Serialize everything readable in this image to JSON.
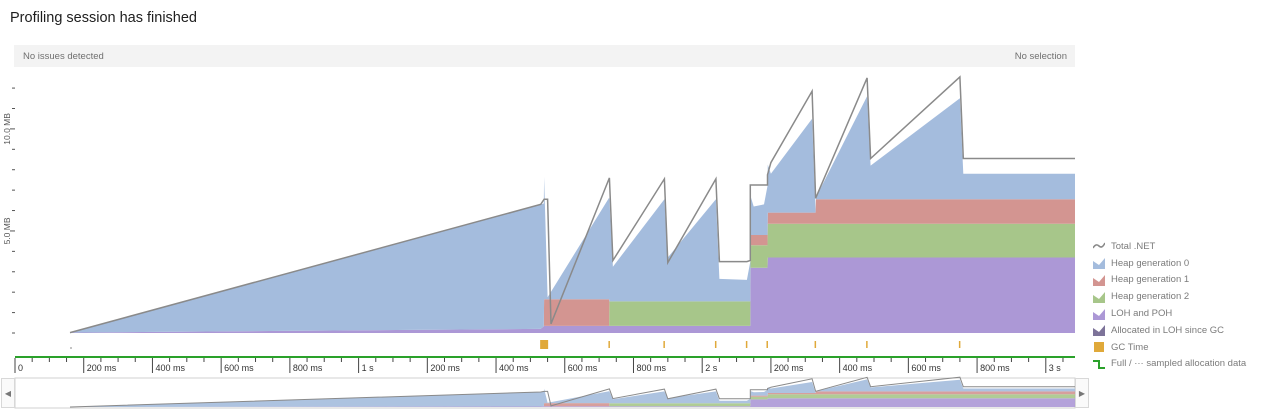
{
  "title": "Profiling session has finished",
  "status": {
    "left": "No issues detected",
    "right": "No selection"
  },
  "legend": [
    {
      "label": "Total .NET",
      "icon": "line-icon",
      "color": "#8a8a8a"
    },
    {
      "label": "Heap generation 0",
      "icon": "area-icon",
      "color": "#a4bcdd"
    },
    {
      "label": "Heap generation 1",
      "icon": "area-icon",
      "color": "#d39591"
    },
    {
      "label": "Heap generation 2",
      "icon": "area-icon",
      "color": "#a7c68a"
    },
    {
      "label": "LOH and POH",
      "icon": "area-icon",
      "color": "#ac98d6"
    },
    {
      "label": "Allocated in LOH since GC",
      "icon": "area-icon",
      "color": "#7d7399"
    },
    {
      "label": "GC Time",
      "icon": "square-icon",
      "color": "#e0a93a"
    },
    {
      "label": "Full / ··· sampled allocation data",
      "icon": "step-line-icon",
      "color": "#2aa12a"
    }
  ],
  "chart_data": {
    "type": "area",
    "stacked": true,
    "ylabel_ticks": [
      "5.0 MB",
      "10.0 MB"
    ],
    "y_ticks": [
      5,
      10
    ],
    "ylim": [
      0,
      12.2
    ],
    "x_unit": "seconds",
    "xlim": [
      0,
      3.085
    ],
    "x_tick_labels": [
      {
        "x": 0,
        "label": "0"
      },
      {
        "x": 0.2,
        "label": "200 ms"
      },
      {
        "x": 0.4,
        "label": "400 ms"
      },
      {
        "x": 0.6,
        "label": "600 ms"
      },
      {
        "x": 0.8,
        "label": "800 ms"
      },
      {
        "x": 1.0,
        "label": "1 s"
      },
      {
        "x": 1.2,
        "label": "200 ms"
      },
      {
        "x": 1.4,
        "label": "400 ms"
      },
      {
        "x": 1.6,
        "label": "600 ms"
      },
      {
        "x": 1.8,
        "label": "800 ms"
      },
      {
        "x": 2.0,
        "label": "2 s"
      },
      {
        "x": 2.2,
        "label": "200 ms"
      },
      {
        "x": 2.4,
        "label": "400 ms"
      },
      {
        "x": 2.6,
        "label": "600 ms"
      },
      {
        "x": 2.8,
        "label": "800 ms"
      },
      {
        "x": 3.0,
        "label": "3 s"
      }
    ],
    "series": [
      {
        "name": "LOH and POH",
        "color": "#ac98d6",
        "points": [
          [
            0.16,
            0.02
          ],
          [
            1.53,
            0.2
          ],
          [
            1.54,
            0.35
          ],
          [
            2.14,
            0.35
          ],
          [
            2.141,
            3.2
          ],
          [
            2.19,
            3.2
          ],
          [
            2.191,
            3.7
          ],
          [
            3.085,
            3.7
          ]
        ]
      },
      {
        "name": "Heap generation 2",
        "color": "#a7c68a",
        "points": [
          [
            0.16,
            0.0
          ],
          [
            1.729,
            0.0
          ],
          [
            1.73,
            1.2
          ],
          [
            2.14,
            1.2
          ],
          [
            2.141,
            1.1
          ],
          [
            2.19,
            1.1
          ],
          [
            2.191,
            1.65
          ],
          [
            3.085,
            1.65
          ]
        ]
      },
      {
        "name": "Heap generation 1",
        "color": "#d39591",
        "points": [
          [
            0.16,
            0.0
          ],
          [
            1.539,
            0.0
          ],
          [
            1.54,
            1.3
          ],
          [
            1.729,
            1.3
          ],
          [
            1.73,
            0.0
          ],
          [
            2.14,
            0.0
          ],
          [
            2.141,
            0.5
          ],
          [
            2.19,
            0.5
          ],
          [
            2.191,
            0.55
          ],
          [
            2.33,
            0.55
          ],
          [
            2.331,
            1.2
          ],
          [
            3.085,
            1.2
          ]
        ]
      },
      {
        "name": "Heap generation 0",
        "color": "#a4bcdd",
        "points": [
          [
            0.16,
            0.0
          ],
          [
            1.53,
            6.1
          ],
          [
            1.54,
            6.0
          ],
          [
            1.55,
            0.1
          ],
          [
            1.73,
            5.0
          ],
          [
            1.74,
            1.7
          ],
          [
            1.89,
            5.0
          ],
          [
            1.9,
            2.15
          ],
          [
            2.04,
            5.0
          ],
          [
            2.05,
            1.1
          ],
          [
            2.13,
            1.05
          ],
          [
            2.14,
            1.95
          ],
          [
            2.15,
            1.4
          ],
          [
            2.18,
            1.5
          ],
          [
            2.19,
            2.4
          ],
          [
            2.2,
            1.9
          ],
          [
            2.32,
            4.6
          ],
          [
            2.33,
            0.05
          ],
          [
            2.48,
            5.05
          ],
          [
            2.49,
            1.65
          ],
          [
            2.75,
            4.95
          ],
          [
            2.76,
            1.25
          ],
          [
            3.085,
            1.25
          ]
        ]
      }
    ],
    "total_dotnet": [
      [
        0.16,
        0.02
      ],
      [
        1.53,
        6.3
      ],
      [
        1.54,
        6.55
      ],
      [
        1.55,
        6.55
      ],
      [
        1.56,
        0.45
      ],
      [
        1.73,
        7.6
      ],
      [
        1.74,
        3.55
      ],
      [
        1.89,
        7.55
      ],
      [
        1.9,
        3.45
      ],
      [
        2.04,
        7.55
      ],
      [
        2.05,
        3.5
      ],
      [
        2.13,
        3.5
      ],
      [
        2.14,
        3.55
      ],
      [
        2.14,
        7.25
      ],
      [
        2.19,
        7.25
      ],
      [
        2.19,
        7.75
      ],
      [
        2.2,
        8.35
      ],
      [
        2.32,
        11.85
      ],
      [
        2.33,
        6.6
      ],
      [
        2.48,
        12.5
      ],
      [
        2.49,
        8.55
      ],
      [
        2.75,
        12.55
      ],
      [
        2.76,
        8.55
      ],
      [
        3.085,
        8.55
      ]
    ],
    "gc_markers": [
      {
        "x": 1.54,
        "major": true
      },
      {
        "x": 1.73
      },
      {
        "x": 1.89
      },
      {
        "x": 2.04
      },
      {
        "x": 2.13
      },
      {
        "x": 2.19
      },
      {
        "x": 2.33
      },
      {
        "x": 2.48
      },
      {
        "x": 2.75
      }
    ]
  }
}
